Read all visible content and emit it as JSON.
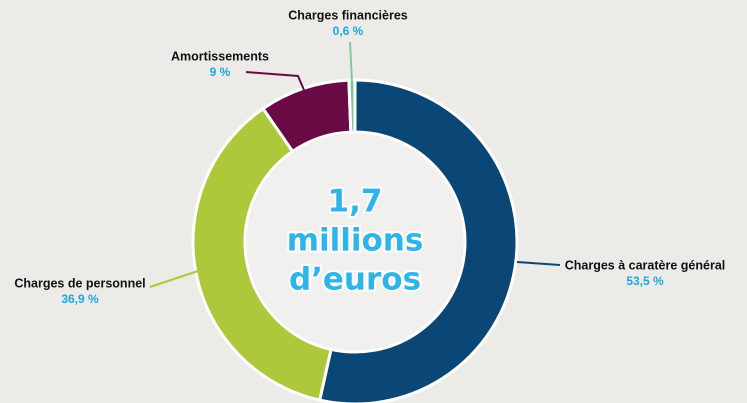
{
  "chart_data": {
    "type": "donut",
    "categories": [
      "Charges à caratère général",
      "Charges de personnel",
      "Amortissements",
      "Charges financières"
    ],
    "values": [
      53.5,
      36.9,
      9,
      0.6
    ],
    "value_labels": [
      "53,5 %",
      "36,9 %",
      "9 %",
      "0,6 %"
    ],
    "colors": [
      "#0b4776",
      "#adc93b",
      "#6a0a45",
      "#7fcb9c"
    ],
    "center_text": [
      "1,7",
      "millions",
      "d’euros"
    ]
  }
}
